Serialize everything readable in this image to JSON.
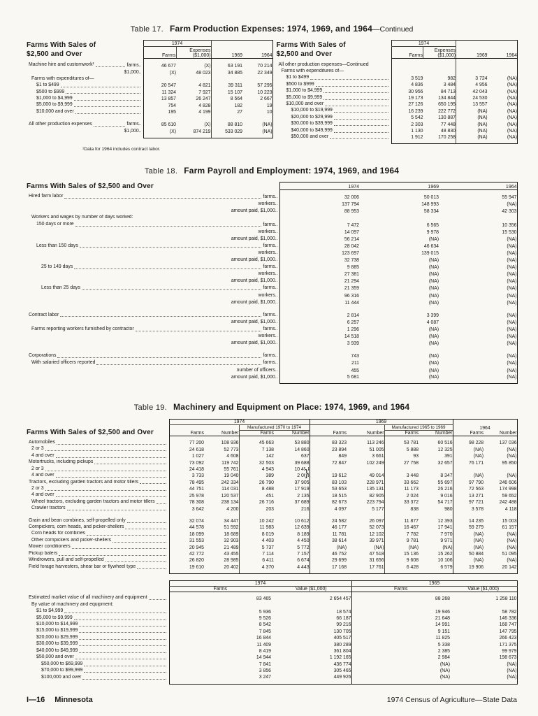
{
  "page": {
    "footer_left_num": "I—16",
    "footer_left_state": "Minnesota",
    "footer_right": "1974 Census of Agriculture—State Data"
  },
  "table17": {
    "title_prefix": "Table 17.",
    "title_main": "Farm Production Expenses: 1974, 1969, and 1964",
    "title_suffix": "—Continued",
    "stub_line1": "Farms With Sales of",
    "stub_line2": "$2,500 and Over",
    "col_1974": "1974",
    "col_farms": "Farms",
    "col_expenses": "Expenses ($1,000)",
    "col_1969": "1969",
    "col_1964": "1964",
    "footnote": "¹Data for 1964 includes contract labor.",
    "left_rows": [
      {
        "l": "Machine hire and customwork¹",
        "u": "farms..",
        "d": true,
        "v": [
          "46 677",
          "(X)",
          "63 191",
          "70 214"
        ]
      },
      {
        "u": "$1,000..",
        "v": [
          "(X)",
          "48 023",
          "34 885",
          "22 349"
        ]
      },
      {
        "l": "Farms with expenditures of—",
        "i": 1
      },
      {
        "l": "$1 to $499",
        "i": 2,
        "d": true,
        "v": [
          "20 547",
          "4 821",
          "39 311",
          "57 295"
        ]
      },
      {
        "l": "$500 to $999",
        "i": 2,
        "d": true,
        "v": [
          "11 324",
          "7 927",
          "15 107",
          "10 223"
        ]
      },
      {
        "l": "$1,000 to $4,999",
        "i": 2,
        "d": true,
        "v": [
          "13 857",
          "26 247",
          "8 564",
          "2 667"
        ]
      },
      {
        "l": "$5,000 to $9,999",
        "i": 2,
        "d": true,
        "v": [
          "754",
          "4 828",
          "182",
          "19"
        ]
      },
      {
        "l": "$10,000 and over",
        "i": 2,
        "d": true,
        "v": [
          "195",
          "4 199",
          "27",
          "10"
        ]
      },
      {
        "l": "All other production expenses",
        "u": "farms..",
        "d": true,
        "s": true,
        "v": [
          "85 610",
          "(X)",
          "88 810",
          "(NA)"
        ]
      },
      {
        "u": "$1,000..",
        "v": [
          "(X)",
          "874 219",
          "533 029",
          "(NA)"
        ]
      }
    ],
    "right_rows": [
      {
        "l": "All other production expenses—Continued"
      },
      {
        "l": "Farms with expenditures of—",
        "i": 1
      },
      {
        "l": "$1 to $499",
        "i": 2,
        "d": true,
        "v": [
          "3 519",
          "982",
          "3 724",
          "(NA)"
        ]
      },
      {
        "l": "$500 to $999",
        "i": 2,
        "d": true,
        "v": [
          "4 836",
          "3 484",
          "4 956",
          "(NA)"
        ]
      },
      {
        "l": "$1,000 to $4,999",
        "i": 2,
        "d": true,
        "v": [
          "30 956",
          "84 713",
          "42 043",
          "(NA)"
        ]
      },
      {
        "l": "$5,000 to $9,999",
        "i": 2,
        "d": true,
        "v": [
          "19 173",
          "134 844",
          "24 530",
          "(NA)"
        ]
      },
      {
        "l": "$10,000 and over",
        "i": 2,
        "d": true,
        "v": [
          "27 126",
          "650 195",
          "13 557",
          "(NA)"
        ]
      },
      {
        "l": "$10,000 to $19,999",
        "i": 3,
        "d": true,
        "v": [
          "16 239",
          "222 772",
          "(NA)",
          "(NA)"
        ]
      },
      {
        "l": "$20,000 to $29,999",
        "i": 3,
        "d": true,
        "v": [
          "5 542",
          "130 887",
          "(NA)",
          "(NA)"
        ]
      },
      {
        "l": "$30,000 to $39,999",
        "i": 3,
        "d": true,
        "v": [
          "2 303",
          "77 448",
          "(NA)",
          "(NA)"
        ]
      },
      {
        "l": "$40,000 to $49,999",
        "i": 3,
        "d": true,
        "v": [
          "1 130",
          "48 830",
          "(NA)",
          "(NA)"
        ]
      },
      {
        "l": "$50,000 and over",
        "i": 3,
        "d": true,
        "v": [
          "1 912",
          "170 258",
          "(NA)",
          "(NA)"
        ]
      }
    ]
  },
  "table18": {
    "title_prefix": "Table 18.",
    "title_main": "Farm Payroll and Employment: 1974, 1969, and 1964",
    "stub_heading": "Farms With Sales of $2,500 and Over",
    "col_1974": "1974",
    "col_1969": "1969",
    "col_1964": "1964",
    "rows": [
      {
        "l": "Hired farm labor",
        "u": "farms..",
        "d": true,
        "v": [
          "32 006",
          "50 013",
          "55 947"
        ]
      },
      {
        "u": "workers..",
        "v": [
          "137 794",
          "148 993",
          "(NA)"
        ]
      },
      {
        "u": "amount paid, $1,000..",
        "v": [
          "88 953",
          "58 334",
          "42 303"
        ]
      },
      {
        "l": "Workers and wages by number of days worked:",
        "i": 1
      },
      {
        "l": "150 days or more",
        "i": 2,
        "d": true,
        "u": "farms..",
        "v": [
          "7 472",
          "6 565",
          "10 356"
        ]
      },
      {
        "u": "workers..",
        "v": [
          "14 097",
          "9 978",
          "15 530"
        ]
      },
      {
        "u": "amount paid, $1,000..",
        "v": [
          "56 214",
          "(NA)",
          "(NA)"
        ]
      },
      {
        "l": "Less than 150 days",
        "i": 2,
        "d": true,
        "u": "farms..",
        "v": [
          "28 042",
          "46 634",
          "(NA)"
        ]
      },
      {
        "u": "workers..",
        "v": [
          "123 697",
          "139 015",
          "(NA)"
        ]
      },
      {
        "u": "amount paid, $1,000..",
        "v": [
          "32 738",
          "(NA)",
          "(NA)"
        ]
      },
      {
        "l": "25 to 149 days",
        "i": 3,
        "d": true,
        "u": "farms..",
        "v": [
          "9 885",
          "(NA)",
          "(NA)"
        ]
      },
      {
        "u": "workers..",
        "v": [
          "27 381",
          "(NA)",
          "(NA)"
        ]
      },
      {
        "u": "amount paid, $1,000..",
        "v": [
          "21 294",
          "(NA)",
          "(NA)"
        ]
      },
      {
        "l": "Less than 25 days",
        "i": 3,
        "d": true,
        "u": "farms..",
        "v": [
          "21 359",
          "(NA)",
          "(NA)"
        ]
      },
      {
        "u": "workers..",
        "v": [
          "96 316",
          "(NA)",
          "(NA)"
        ]
      },
      {
        "u": "amount paid, $1,000..",
        "v": [
          "11 444",
          "(NA)",
          "(NA)"
        ]
      },
      {
        "l": "Contract labor",
        "u": "farms..",
        "d": true,
        "s": true,
        "v": [
          "2 814",
          "3 399",
          "(NA)"
        ]
      },
      {
        "u": "amount paid, $1,000..",
        "v": [
          "6 257",
          "4 087",
          "(NA)"
        ]
      },
      {
        "l": "Farms reporting workers furnished by contractor",
        "i": 1,
        "d": true,
        "u": "farms..",
        "v": [
          "1 296",
          "(NA)",
          "(NA)"
        ]
      },
      {
        "u": "workers..",
        "v": [
          "14 518",
          "(NA)",
          "(NA)"
        ]
      },
      {
        "u": "amount paid, $1,000..",
        "v": [
          "3 939",
          "(NA)",
          "(NA)"
        ]
      },
      {
        "l": "Corporations",
        "u": "farms..",
        "d": true,
        "s": true,
        "v": [
          "743",
          "(NA)",
          "(NA)"
        ]
      },
      {
        "l": "With salaried officers reported",
        "i": 1,
        "d": true,
        "u": "farms..",
        "v": [
          "211",
          "(NA)",
          "(NA)"
        ]
      },
      {
        "u": "number of officers..",
        "v": [
          "455",
          "(NA)",
          "(NA)"
        ]
      },
      {
        "u": "amount paid, $1,000..",
        "v": [
          "5 681",
          "(NA)",
          "(NA)"
        ]
      }
    ]
  },
  "table19": {
    "title_prefix": "Table 19.",
    "title_main": "Machinery and Equipment on Place: 1974, 1969, and 1964",
    "stub_heading": "Farms With Sales of $2,500 and Over",
    "col_1974": "1974",
    "col_1969": "1969",
    "col_1964": "1964",
    "col_farms": "Farms",
    "col_number": "Number",
    "mfg_1974": "Manufactured 1970 to 1974",
    "mfg_1969": "Manufactured 1965 to 1969",
    "rows": [
      {
        "l": "Automobiles",
        "d": true,
        "v": [
          "77 200",
          "108 936",
          "45 663",
          "53 880",
          "83 323",
          "113 246",
          "53 781",
          "60 516",
          "98 228",
          "137 036"
        ]
      },
      {
        "l": "2 or 3",
        "i": 1,
        "d": true,
        "v": [
          "24 618",
          "52 773",
          "7 138",
          "14 860",
          "23 894",
          "51 005",
          "5 888",
          "12 325",
          "(NA)",
          "(NA)"
        ]
      },
      {
        "l": "4 and over",
        "i": 1,
        "d": true,
        "v": [
          "1 027",
          "4 608",
          "142",
          "637",
          "849",
          "3 661",
          "93",
          "391",
          "(NA)",
          "(NA)"
        ]
      },
      {
        "l": "Motortrucks, including pickups",
        "d": true,
        "v": [
          "73 092",
          "119 742",
          "32 503",
          "39 688",
          "72 847",
          "102 249",
          "27 758",
          "32 657",
          "76 171",
          "95 850"
        ]
      },
      {
        "l": "2 or 3",
        "i": 1,
        "d": true,
        "v4": [
          "24 418",
          "55 761",
          "4 943",
          "10 454"
        ],
        "m": [
          "19 612",
          "49 014",
          "3 448",
          "8 347",
          "(NA)",
          "(NA)"
        ]
      },
      {
        "l": "4 and over",
        "i": 1,
        "d": true,
        "v4": [
          "3 733",
          "19 040",
          "389",
          "2 063"
        ]
      },
      {
        "l": "Tractors, excluding garden tractors and motor tillers",
        "d": true,
        "v": [
          "78 495",
          "242 334",
          "26 790",
          "37 905",
          "83 103",
          "228 971",
          "33 662",
          "55 697",
          "97 790",
          "246 606"
        ]
      },
      {
        "l": "2 or 3",
        "i": 1,
        "d": true,
        "v": [
          "44 751",
          "114 031",
          "8 488",
          "17 919",
          "53 653",
          "135 131",
          "11 173",
          "26 216",
          "72 563",
          "174 998"
        ]
      },
      {
        "l": "4 and over",
        "i": 1,
        "d": true,
        "v": [
          "25 978",
          "120 537",
          "451",
          "2 135",
          "18 515",
          "82 905",
          "2 024",
          "9 016",
          "13 271",
          "59 652"
        ]
      },
      {
        "l": "Wheel tractors, excluding garden tractors and motor tillers",
        "i": 1,
        "d": true,
        "v": [
          "78 308",
          "238 134",
          "26 716",
          "37 689",
          "82 673",
          "223 794",
          "33 372",
          "54 717",
          "97 721",
          "242 488"
        ]
      },
      {
        "l": "Crawler tractors",
        "i": 1,
        "d": true,
        "v": [
          "3 642",
          "4 200",
          "203",
          "216",
          "4 097",
          "5 177",
          "838",
          "980",
          "3 578",
          "4 118"
        ]
      },
      {
        "l": "Grain and bean combines, self-propelled only",
        "d": true,
        "s": true,
        "v": [
          "32 074",
          "34 447",
          "10 242",
          "10 612",
          "24 582",
          "26 097",
          "11 877",
          "12 393",
          "14 235",
          "15 003"
        ]
      },
      {
        "l": "Cornpickers, corn heads, and picker-shellers",
        "d": true,
        "v": [
          "44 578",
          "51 592",
          "11 983",
          "12 639",
          "46 177",
          "52 073",
          "16 467",
          "17 941",
          "59 279",
          "61 157"
        ]
      },
      {
        "l": "Corn heads for combines",
        "i": 1,
        "d": true,
        "v": [
          "18 099",
          "18 689",
          "8 019",
          "8 189",
          "11 781",
          "12 102",
          "7 782",
          "7 970",
          "(NA)",
          "(NA)"
        ]
      },
      {
        "l": "Other cornpickers and picker-shellers",
        "i": 1,
        "d": true,
        "v": [
          "31 553",
          "32 903",
          "4 403",
          "4 450",
          "38 614",
          "39 971",
          "9 781",
          "9 971",
          "(NA)",
          "(NA)"
        ]
      },
      {
        "l": "Mower conditioners",
        "d": true,
        "v": [
          "20 945",
          "21 489",
          "5 737",
          "5 772",
          "(NA)",
          "(NA)",
          "(NA)",
          "(NA)",
          "(NA)",
          "(NA)"
        ]
      },
      {
        "l": "Pickup balers",
        "d": true,
        "v": [
          "42 772",
          "43 455",
          "7 114",
          "7 157",
          "46 752",
          "47 518",
          "15 136",
          "15 262",
          "50 884",
          "51 095"
        ]
      },
      {
        "l": "Windrowers, pull and self-propelled",
        "d": true,
        "v": [
          "26 820",
          "28 985",
          "6 411",
          "6 674",
          "29 699",
          "31 656",
          "9 608",
          "10 106",
          "(NA)",
          "(NA)"
        ]
      },
      {
        "l": "Field forage harvesters, shear bar or flywheel type",
        "d": true,
        "v": [
          "19 610",
          "20 402",
          "4 370",
          "4 443",
          "17 168",
          "17 761",
          "6 428",
          "6 579",
          "19 906",
          "20 142"
        ]
      }
    ],
    "value_section": {
      "col_1974": "1974",
      "col_1969": "1969",
      "col_farms": "Farms",
      "col_value": "Value ($1,000)",
      "rows": [
        {
          "l": "Estimated market value of all machinery and equipment",
          "d": true,
          "v": [
            "83 465",
            "2 654 457",
            "88 268",
            "1 258 110"
          ]
        },
        {
          "l": "By value of machinery and equipment:",
          "i": 1
        },
        {
          "l": "$1 to $4,999",
          "i": 2,
          "d": true,
          "v": [
            "5 936",
            "18 574",
            "19 946",
            "58 782"
          ]
        },
        {
          "l": "$5,000 to $9,999",
          "i": 2,
          "d": true,
          "v": [
            "9 526",
            "66 187",
            "21 648",
            "146 336"
          ]
        },
        {
          "l": "$10,000 to $14,999",
          "i": 2,
          "d": true,
          "v": [
            "8 542",
            "99 216",
            "14 991",
            "168 747"
          ]
        },
        {
          "l": "$15,000 to $19,999",
          "i": 2,
          "d": true,
          "v": [
            "7 845",
            "130 705",
            "9 151",
            "147 795"
          ]
        },
        {
          "l": "$20,000 to $29,999",
          "i": 2,
          "d": true,
          "v": [
            "16 844",
            "405 517",
            "11 825",
            "266 423"
          ]
        },
        {
          "l": "$30,000 to $39,999",
          "i": 2,
          "d": true,
          "v": [
            "11 409",
            "380 289",
            "5 338",
            "171 375"
          ]
        },
        {
          "l": "$40,000 to $49,999",
          "i": 2,
          "d": true,
          "v": [
            "8 419",
            "361 804",
            "2 385",
            "99 979"
          ]
        },
        {
          "l": "$50,000 and over",
          "i": 2,
          "d": true,
          "v": [
            "14 944",
            "1 192 165",
            "2 984",
            "198 673"
          ]
        },
        {
          "l": "$50,000 to $69,999",
          "i": 3,
          "d": true,
          "v": [
            "7 841",
            "436 774",
            "(NA)",
            "(NA)"
          ]
        },
        {
          "l": "$70,000 to $99,999",
          "i": 3,
          "d": true,
          "v": [
            "3 856",
            "305 465",
            "(NA)",
            "(NA)"
          ]
        },
        {
          "l": "$100,000 and over",
          "i": 3,
          "d": true,
          "v": [
            "3 247",
            "449 926",
            "(NA)",
            "(NA)"
          ]
        }
      ]
    }
  }
}
